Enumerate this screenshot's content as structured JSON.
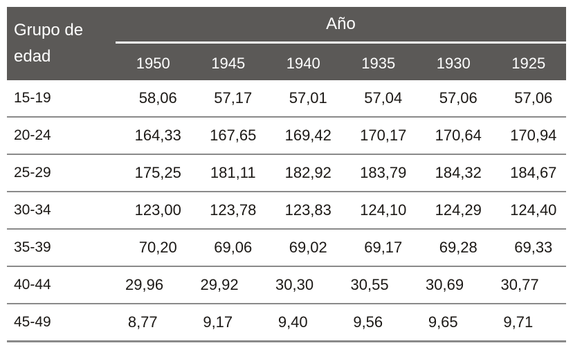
{
  "table": {
    "corner_header": "Grupo de edad",
    "year_group_header": "Año",
    "years": [
      "1950",
      "1945",
      "1940",
      "1935",
      "1930",
      "1925"
    ],
    "rows": [
      {
        "age": "15-19",
        "values": [
          "58,06",
          "57,17",
          "57,01",
          "57,04",
          "57,06",
          "57,06"
        ]
      },
      {
        "age": "20-24",
        "values": [
          "164,33",
          "167,65",
          "169,42",
          "170,17",
          "170,64",
          "170,94"
        ]
      },
      {
        "age": "25-29",
        "values": [
          "175,25",
          "181,11",
          "182,92",
          "183,79",
          "184,32",
          "184,67"
        ]
      },
      {
        "age": "30-34",
        "values": [
          "123,00",
          "123,78",
          "123,83",
          "124,10",
          "124,29",
          "124,40"
        ]
      },
      {
        "age": "35-39",
        "values": [
          "70,20",
          "69,06",
          "69,02",
          "69,17",
          "69,28",
          "69,33"
        ]
      },
      {
        "age": "40-44",
        "values": [
          "29,96",
          "29,92",
          "30,30",
          "30,55",
          "30,69",
          "30,77"
        ]
      },
      {
        "age": "45-49",
        "values": [
          "8,77",
          "9,17",
          "9,40",
          "9,56",
          "9,65",
          "9,71"
        ]
      }
    ]
  },
  "colors": {
    "header_background": "#5b5957",
    "header_text": "#ffffff",
    "body_text": "#1b1815",
    "row_divider": "#8a8a8a",
    "page_background": "#ffffff"
  },
  "chart_data": {
    "type": "table",
    "title": "",
    "row_header_label": "Grupo de edad",
    "column_group_label": "Año",
    "columns": [
      "1950",
      "1945",
      "1940",
      "1935",
      "1930",
      "1925"
    ],
    "row_categories": [
      "15-19",
      "20-24",
      "25-29",
      "30-34",
      "35-39",
      "40-44",
      "45-49"
    ],
    "values": [
      [
        58.06,
        57.17,
        57.01,
        57.04,
        57.06,
        57.06
      ],
      [
        164.33,
        167.65,
        169.42,
        170.17,
        170.64,
        170.94
      ],
      [
        175.25,
        181.11,
        182.92,
        183.79,
        184.32,
        184.67
      ],
      [
        123.0,
        123.78,
        123.83,
        124.1,
        124.29,
        124.4
      ],
      [
        70.2,
        69.06,
        69.02,
        69.17,
        69.28,
        69.33
      ],
      [
        29.96,
        29.92,
        30.3,
        30.55,
        30.69,
        30.77
      ],
      [
        8.77,
        9.17,
        9.4,
        9.56,
        9.65,
        9.71
      ]
    ],
    "decimal_separator": ","
  }
}
